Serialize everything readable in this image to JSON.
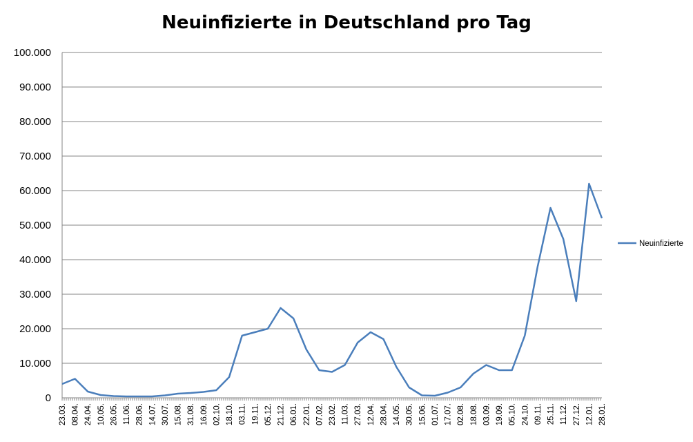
{
  "chart_data": {
    "type": "line",
    "title": "Neuinfizierte in Deutschland pro Tag",
    "xlabel": "",
    "ylabel": "",
    "ylim": [
      0,
      100000
    ],
    "yticks": [
      0,
      10000,
      20000,
      30000,
      40000,
      50000,
      60000,
      70000,
      80000,
      90000,
      100000
    ],
    "ytick_labels": [
      "0",
      "10.000",
      "20.000",
      "30.000",
      "40.000",
      "50.000",
      "60.000",
      "70.000",
      "80.000",
      "90.000",
      "100.000"
    ],
    "x_tick_labels": [
      "23.03.",
      "08.04.",
      "24.04.",
      "10.05.",
      "26.05.",
      "11.06.",
      "28.06.",
      "14.07.",
      "30.07.",
      "15.08.",
      "31.08.",
      "16.09.",
      "02.10.",
      "18.10.",
      "03.11.",
      "19.11.",
      "05.12.",
      "21.12.",
      "06.01.",
      "22.01.",
      "07.02.",
      "23.02.",
      "11.03.",
      "27.03.",
      "12.04.",
      "28.04.",
      "14.05.",
      "30.05.",
      "15.06.",
      "01.07.",
      "17.07.",
      "02.08.",
      "18.08.",
      "03.09.",
      "19.09.",
      "05.10.",
      "24.10.",
      "09.11.",
      "25.11.",
      "11.12.",
      "27.12.",
      "12.01.",
      "28.01."
    ],
    "grid": true,
    "legend_position": "right",
    "series": [
      {
        "name": "Neuinfizierte",
        "color": "#4a7ebb",
        "points": [
          [
            "23.03.",
            4000
          ],
          [
            "08.04.",
            5500
          ],
          [
            "24.04.",
            1800
          ],
          [
            "10.05.",
            800
          ],
          [
            "26.05.",
            500
          ],
          [
            "11.06.",
            400
          ],
          [
            "28.06.",
            400
          ],
          [
            "14.07.",
            400
          ],
          [
            "30.07.",
            700
          ],
          [
            "15.08.",
            1200
          ],
          [
            "31.08.",
            1400
          ],
          [
            "16.09.",
            1700
          ],
          [
            "02.10.",
            2200
          ],
          [
            "18.10.",
            6000
          ],
          [
            "03.11.",
            18000
          ],
          [
            "19.11.",
            19000
          ],
          [
            "05.12.",
            20000
          ],
          [
            "21.12.",
            26000
          ],
          [
            "06.01.",
            23000
          ],
          [
            "22.01.",
            14000
          ],
          [
            "07.02.",
            8000
          ],
          [
            "23.02.",
            7500
          ],
          [
            "11.03.",
            9500
          ],
          [
            "27.03.",
            16000
          ],
          [
            "12.04.",
            19000
          ],
          [
            "28.04.",
            17000
          ],
          [
            "14.05.",
            9000
          ],
          [
            "30.05.",
            3000
          ],
          [
            "15.06.",
            700
          ],
          [
            "01.07.",
            600
          ],
          [
            "17.07.",
            1500
          ],
          [
            "02.08.",
            3000
          ],
          [
            "18.08.",
            7000
          ],
          [
            "03.09.",
            9500
          ],
          [
            "19.09.",
            8000
          ],
          [
            "05.10.",
            8000
          ],
          [
            "24.10.",
            18000
          ],
          [
            "09.11.",
            38000
          ],
          [
            "25.11.",
            55000
          ],
          [
            "11.12.",
            46000
          ],
          [
            "27.12.",
            28000
          ],
          [
            "12.01.",
            62000
          ],
          [
            "28.01.",
            52000
          ]
        ]
      }
    ]
  }
}
